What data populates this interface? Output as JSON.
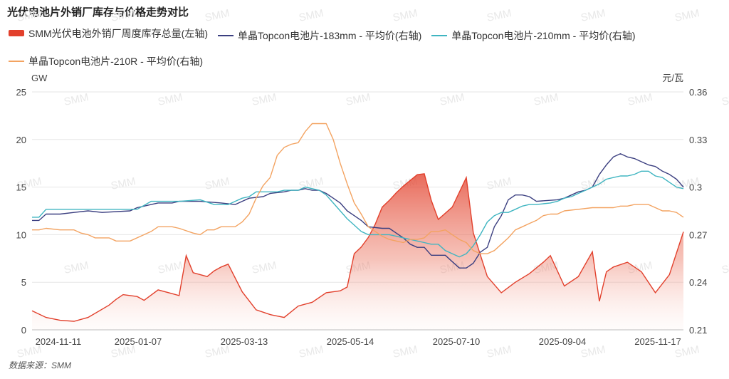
{
  "title": "光伏电池片外销厂库存与价格走势对比",
  "source": "数据来源：SMM",
  "watermark": "SMM",
  "chart_data": {
    "type": "line",
    "left_axis": {
      "label": "GW",
      "min": 0,
      "max": 25,
      "ticks": [
        "0",
        "5",
        "10",
        "15",
        "20",
        "25"
      ]
    },
    "right_axis": {
      "label": "元/瓦",
      "min": 0.21,
      "max": 0.36,
      "ticks": [
        "0.21",
        "0.24",
        "0.27",
        "0.3",
        "0.33",
        "0.36"
      ]
    },
    "x_ticks": [
      "2024-11-11",
      "2025-01-07",
      "2025-03-13",
      "2025-05-14",
      "2025-07-10",
      "2025-09-04",
      "2025-11-17"
    ],
    "grid": "horizontal",
    "legend_position": "top",
    "series": [
      {
        "name": "SMM光伏电池外销厂周度库存总量(左轴)",
        "axis": "left",
        "style": "area",
        "color": "#e2402c",
        "points": [
          [
            0,
            2
          ],
          [
            2,
            1.3
          ],
          [
            4,
            1
          ],
          [
            6,
            0.9
          ],
          [
            8,
            1.3
          ],
          [
            11,
            2.6
          ],
          [
            12,
            3.2
          ],
          [
            13,
            3.7
          ],
          [
            15,
            3.5
          ],
          [
            16,
            3.1
          ],
          [
            18,
            4.2
          ],
          [
            20,
            3.8
          ],
          [
            21,
            3.6
          ],
          [
            22,
            7.8
          ],
          [
            23,
            6
          ],
          [
            25,
            5.6
          ],
          [
            26,
            6.2
          ],
          [
            27,
            6.6
          ],
          [
            28,
            6.9
          ],
          [
            30,
            4
          ],
          [
            32,
            2.1
          ],
          [
            34,
            1.6
          ],
          [
            36,
            1.3
          ],
          [
            38,
            2.5
          ],
          [
            39,
            2.7
          ],
          [
            40,
            2.9
          ],
          [
            42,
            3.9
          ],
          [
            44,
            4.1
          ],
          [
            45,
            4.5
          ],
          [
            46,
            8
          ],
          [
            47,
            8.7
          ],
          [
            48,
            9.7
          ],
          [
            49,
            11.1
          ],
          [
            50,
            12.9
          ],
          [
            51,
            13.6
          ],
          [
            52,
            14.4
          ],
          [
            53,
            15.1
          ],
          [
            54,
            15.7
          ],
          [
            55,
            16.3
          ],
          [
            56,
            16.4
          ],
          [
            57,
            13.6
          ],
          [
            58,
            11.6
          ],
          [
            60,
            12.9
          ],
          [
            62,
            16
          ],
          [
            63,
            10.2
          ],
          [
            65,
            5.6
          ],
          [
            67,
            3.9
          ],
          [
            69,
            5
          ],
          [
            71,
            5.9
          ],
          [
            73,
            7.1
          ],
          [
            74,
            7.8
          ],
          [
            76,
            4.6
          ],
          [
            78,
            5.6
          ],
          [
            80,
            8.2
          ],
          [
            81,
            3
          ],
          [
            82,
            6.1
          ],
          [
            83,
            6.6
          ],
          [
            85,
            7.1
          ],
          [
            87,
            6.1
          ],
          [
            89,
            3.9
          ],
          [
            91,
            5.8
          ],
          [
            93,
            10.3
          ]
        ]
      },
      {
        "name": "单晶Topcon电池片-183mm - 平均价(右轴)",
        "axis": "right",
        "style": "line",
        "color": "#3b3f80",
        "points": [
          [
            0,
            0.279
          ],
          [
            1,
            0.279
          ],
          [
            2,
            0.283
          ],
          [
            4,
            0.283
          ],
          [
            6,
            0.284
          ],
          [
            8,
            0.285
          ],
          [
            10,
            0.284
          ],
          [
            14,
            0.285
          ],
          [
            15,
            0.287
          ],
          [
            16,
            0.288
          ],
          [
            17,
            0.289
          ],
          [
            18,
            0.29
          ],
          [
            20,
            0.29
          ],
          [
            21,
            0.291
          ],
          [
            24,
            0.291
          ],
          [
            27,
            0.29
          ],
          [
            29,
            0.289
          ],
          [
            30,
            0.291
          ],
          [
            31,
            0.293
          ],
          [
            33,
            0.294
          ],
          [
            34,
            0.296
          ],
          [
            36,
            0.297
          ],
          [
            37,
            0.298
          ],
          [
            38,
            0.298
          ],
          [
            39,
            0.299
          ],
          [
            40,
            0.298
          ],
          [
            41,
            0.298
          ],
          [
            42,
            0.296
          ],
          [
            43,
            0.293
          ],
          [
            44,
            0.29
          ],
          [
            45,
            0.285
          ],
          [
            46,
            0.282
          ],
          [
            47,
            0.279
          ],
          [
            48,
            0.275
          ],
          [
            50,
            0.274
          ],
          [
            51,
            0.274
          ],
          [
            52,
            0.271
          ],
          [
            53,
            0.268
          ],
          [
            54,
            0.264
          ],
          [
            55,
            0.262
          ],
          [
            56,
            0.262
          ],
          [
            57,
            0.257
          ],
          [
            58,
            0.257
          ],
          [
            59,
            0.257
          ],
          [
            60,
            0.253
          ],
          [
            61,
            0.249
          ],
          [
            62,
            0.249
          ],
          [
            63,
            0.252
          ],
          [
            64,
            0.259
          ],
          [
            65,
            0.262
          ],
          [
            66,
            0.275
          ],
          [
            67,
            0.282
          ],
          [
            68,
            0.292
          ],
          [
            69,
            0.295
          ],
          [
            70,
            0.295
          ],
          [
            71,
            0.294
          ],
          [
            72,
            0.291
          ],
          [
            75,
            0.292
          ],
          [
            76,
            0.293
          ],
          [
            78,
            0.297
          ],
          [
            79,
            0.298
          ],
          [
            80,
            0.3
          ],
          [
            81,
            0.308
          ],
          [
            82,
            0.314
          ],
          [
            83,
            0.319
          ],
          [
            84,
            0.321
          ],
          [
            85,
            0.319
          ],
          [
            86,
            0.318
          ],
          [
            87,
            0.316
          ],
          [
            88,
            0.314
          ],
          [
            89,
            0.313
          ],
          [
            90,
            0.31
          ],
          [
            91,
            0.308
          ],
          [
            92,
            0.305
          ],
          [
            93,
            0.3
          ]
        ]
      },
      {
        "name": "单晶Topcon电池片-210mm - 平均价(右轴)",
        "axis": "right",
        "style": "line",
        "color": "#3fb5c1",
        "points": [
          [
            0,
            0.281
          ],
          [
            1,
            0.281
          ],
          [
            2,
            0.286
          ],
          [
            4,
            0.286
          ],
          [
            14,
            0.286
          ],
          [
            15,
            0.286
          ],
          [
            17,
            0.291
          ],
          [
            19,
            0.291
          ],
          [
            21,
            0.291
          ],
          [
            24,
            0.292
          ],
          [
            26,
            0.289
          ],
          [
            28,
            0.289
          ],
          [
            29,
            0.291
          ],
          [
            30,
            0.293
          ],
          [
            31,
            0.294
          ],
          [
            32,
            0.297
          ],
          [
            33,
            0.297
          ],
          [
            35,
            0.297
          ],
          [
            36,
            0.298
          ],
          [
            38,
            0.298
          ],
          [
            39,
            0.3
          ],
          [
            40,
            0.299
          ],
          [
            41,
            0.298
          ],
          [
            42,
            0.295
          ],
          [
            43,
            0.29
          ],
          [
            44,
            0.285
          ],
          [
            45,
            0.28
          ],
          [
            46,
            0.276
          ],
          [
            47,
            0.272
          ],
          [
            48,
            0.27
          ],
          [
            50,
            0.27
          ],
          [
            51,
            0.27
          ],
          [
            52,
            0.269
          ],
          [
            53,
            0.268
          ],
          [
            54,
            0.267
          ],
          [
            55,
            0.266
          ],
          [
            56,
            0.265
          ],
          [
            57,
            0.264
          ],
          [
            58,
            0.264
          ],
          [
            59,
            0.26
          ],
          [
            60,
            0.258
          ],
          [
            61,
            0.256
          ],
          [
            62,
            0.258
          ],
          [
            63,
            0.263
          ],
          [
            64,
            0.27
          ],
          [
            65,
            0.278
          ],
          [
            66,
            0.282
          ],
          [
            67,
            0.284
          ],
          [
            68,
            0.284
          ],
          [
            69,
            0.286
          ],
          [
            70,
            0.288
          ],
          [
            71,
            0.289
          ],
          [
            72,
            0.289
          ],
          [
            74,
            0.29
          ],
          [
            75,
            0.291
          ],
          [
            76,
            0.293
          ],
          [
            77,
            0.294
          ],
          [
            78,
            0.296
          ],
          [
            79,
            0.298
          ],
          [
            80,
            0.3
          ],
          [
            81,
            0.302
          ],
          [
            82,
            0.305
          ],
          [
            83,
            0.306
          ],
          [
            84,
            0.307
          ],
          [
            85,
            0.307
          ],
          [
            86,
            0.308
          ],
          [
            87,
            0.31
          ],
          [
            88,
            0.31
          ],
          [
            89,
            0.307
          ],
          [
            90,
            0.306
          ],
          [
            91,
            0.303
          ],
          [
            92,
            0.3
          ],
          [
            93,
            0.299
          ]
        ]
      },
      {
        "name": "单晶Topcon电池片-210R - 平均价(右轴)",
        "axis": "right",
        "style": "line",
        "color": "#f3a361",
        "points": [
          [
            0,
            0.273
          ],
          [
            1,
            0.273
          ],
          [
            2,
            0.274
          ],
          [
            4,
            0.273
          ],
          [
            6,
            0.273
          ],
          [
            7,
            0.271
          ],
          [
            8,
            0.27
          ],
          [
            9,
            0.268
          ],
          [
            11,
            0.268
          ],
          [
            12,
            0.266
          ],
          [
            14,
            0.266
          ],
          [
            16,
            0.27
          ],
          [
            17,
            0.272
          ],
          [
            18,
            0.275
          ],
          [
            20,
            0.275
          ],
          [
            21,
            0.274
          ],
          [
            23,
            0.271
          ],
          [
            24,
            0.27
          ],
          [
            25,
            0.273
          ],
          [
            26,
            0.273
          ],
          [
            27,
            0.275
          ],
          [
            29,
            0.275
          ],
          [
            30,
            0.278
          ],
          [
            31,
            0.283
          ],
          [
            32,
            0.293
          ],
          [
            33,
            0.301
          ],
          [
            34,
            0.306
          ],
          [
            35,
            0.32
          ],
          [
            36,
            0.325
          ],
          [
            37,
            0.327
          ],
          [
            38,
            0.328
          ],
          [
            39,
            0.335
          ],
          [
            40,
            0.34
          ],
          [
            41,
            0.34
          ],
          [
            42,
            0.34
          ],
          [
            43,
            0.33
          ],
          [
            44,
            0.315
          ],
          [
            45,
            0.302
          ],
          [
            46,
            0.29
          ],
          [
            47,
            0.283
          ],
          [
            48,
            0.275
          ],
          [
            49,
            0.272
          ],
          [
            50,
            0.269
          ],
          [
            51,
            0.267
          ],
          [
            52,
            0.266
          ],
          [
            53,
            0.265
          ],
          [
            54,
            0.267
          ],
          [
            55,
            0.267
          ],
          [
            56,
            0.268
          ],
          [
            57,
            0.272
          ],
          [
            58,
            0.272
          ],
          [
            59,
            0.273
          ],
          [
            60,
            0.27
          ],
          [
            61,
            0.267
          ],
          [
            62,
            0.265
          ],
          [
            63,
            0.26
          ],
          [
            64,
            0.258
          ],
          [
            65,
            0.258
          ],
          [
            66,
            0.26
          ],
          [
            67,
            0.264
          ],
          [
            68,
            0.268
          ],
          [
            69,
            0.273
          ],
          [
            70,
            0.275
          ],
          [
            71,
            0.277
          ],
          [
            72,
            0.279
          ],
          [
            73,
            0.282
          ],
          [
            74,
            0.283
          ],
          [
            75,
            0.283
          ],
          [
            76,
            0.285
          ],
          [
            78,
            0.286
          ],
          [
            80,
            0.287
          ],
          [
            82,
            0.287
          ],
          [
            83,
            0.287
          ],
          [
            84,
            0.288
          ],
          [
            85,
            0.288
          ],
          [
            86,
            0.289
          ],
          [
            87,
            0.289
          ],
          [
            88,
            0.289
          ],
          [
            89,
            0.287
          ],
          [
            90,
            0.285
          ],
          [
            91,
            0.285
          ],
          [
            92,
            0.284
          ],
          [
            93,
            0.281
          ]
        ]
      }
    ]
  }
}
